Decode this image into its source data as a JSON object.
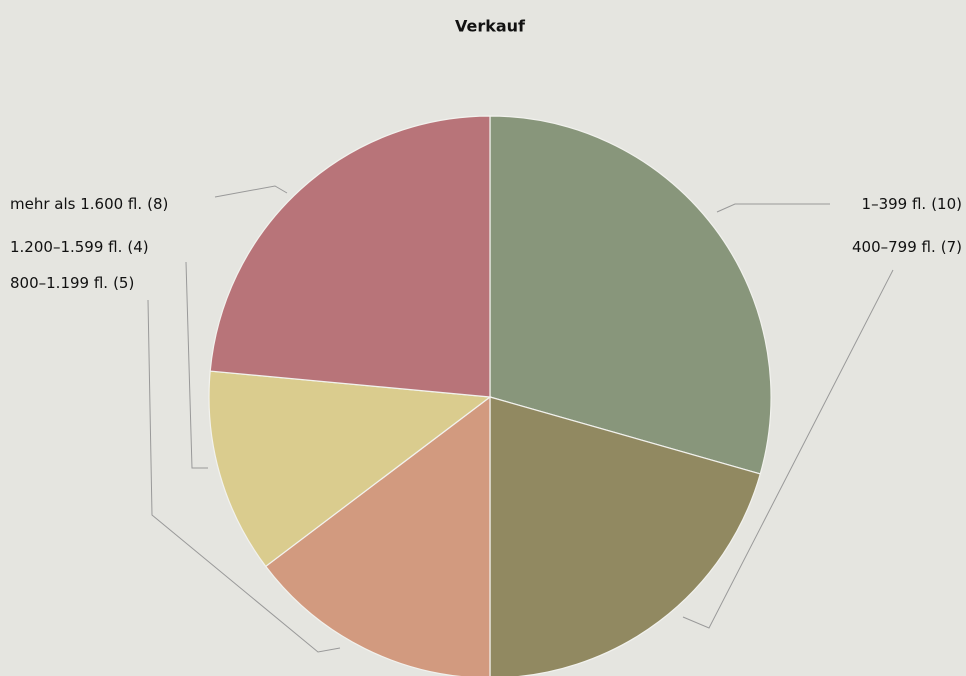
{
  "chart_data": {
    "type": "pie",
    "title": "Verkauf",
    "categories": [
      "1–399 fl.",
      "400–799 fl.",
      "800–1.199 fl.",
      "1.200–1.599 fl.",
      "mehr als 1.600 fl."
    ],
    "values": [
      10,
      7,
      5,
      4,
      8
    ],
    "value_labels": [
      "(10)",
      "(7)",
      "(5)",
      "(4)",
      "(8)"
    ],
    "colors": [
      "#88967b",
      "#918961",
      "#d29a7f",
      "#dacc8e",
      "#b87479"
    ]
  }
}
